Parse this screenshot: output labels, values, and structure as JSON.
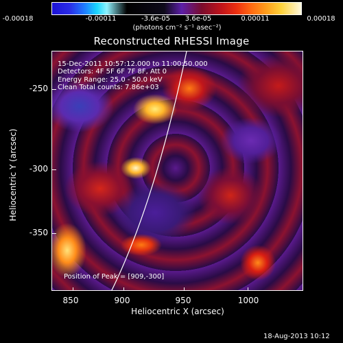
{
  "colorbar": {
    "labels": [
      "-0.00018",
      "-0.00011",
      "-3.6e-05",
      "3.6e-05",
      "0.00011",
      "0.00018"
    ],
    "units": "(photons cm⁻² s⁻¹ asec⁻²)",
    "colors": [
      "#1c12d6",
      "#19d6ff",
      "#000000",
      "#5c1fa8",
      "#c1141a",
      "#ff6a12",
      "#ffd23a",
      "#fff8dd"
    ]
  },
  "title": "Reconstructed RHESSI Image",
  "info": {
    "line1": "15-Dec-2011 10:57:12.000 to 11:00:50.000",
    "line2": "Detectors: 4F 5F 6F 7F 8F, Att 0",
    "line3": "Energy Range: 25.0 - 50.0 keV",
    "line4": "Clean    Total counts: 7.86e+03"
  },
  "peak": "Position of Peak = [909,-300]",
  "axes": {
    "x_title": "Heliocentric X (arcsec)",
    "y_title": "Heliocentric Y (arcsec)",
    "x_ticks": [
      "850",
      "900",
      "950",
      "1000"
    ],
    "y_ticks": [
      "-250",
      "-300",
      "-350"
    ]
  },
  "date_stamp": "18-Aug-2013 10:12"
}
